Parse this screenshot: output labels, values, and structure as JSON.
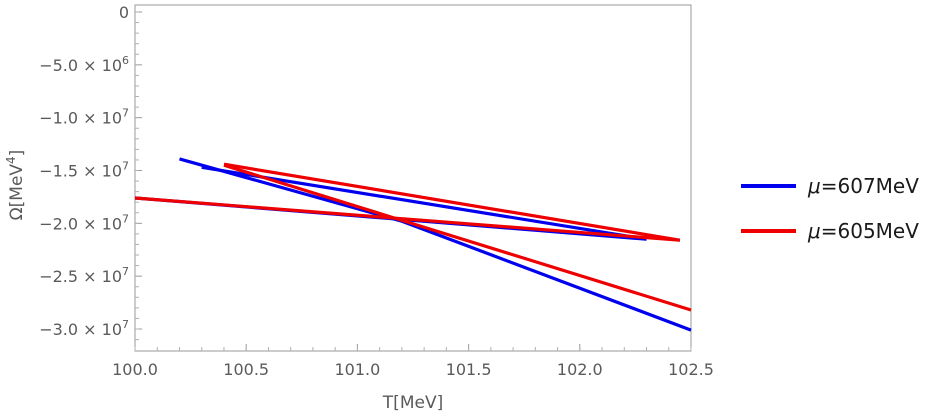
{
  "chart_data": {
    "type": "line",
    "title": "",
    "xlabel": "T[MeV]",
    "ylabel_base": "Ω[MeV",
    "ylabel_exp": "4",
    "ylabel_close": "]",
    "xlim": [
      100.0,
      102.5
    ],
    "ylim": [
      -32000000,
      0
    ],
    "grid": false,
    "legend_placement": "right",
    "x_ticks": [
      {
        "value": 100.0,
        "label": "100.0"
      },
      {
        "value": 100.5,
        "label": "100.5"
      },
      {
        "value": 101.0,
        "label": "101.0"
      },
      {
        "value": 101.5,
        "label": "101.5"
      },
      {
        "value": 102.0,
        "label": "102.0"
      },
      {
        "value": 102.5,
        "label": "102.5"
      }
    ],
    "y_ticks": [
      {
        "value": 0,
        "label": "0",
        "exp": ""
      },
      {
        "value": -5000000,
        "label": "−5.0 × 10",
        "exp": "6"
      },
      {
        "value": -10000000,
        "label": "−1.0 × 10",
        "exp": "7"
      },
      {
        "value": -15000000,
        "label": "−1.5 × 10",
        "exp": "7"
      },
      {
        "value": -20000000,
        "label": "−2.0 × 10",
        "exp": "7"
      },
      {
        "value": -25000000,
        "label": "−2.5 × 10",
        "exp": "7"
      },
      {
        "value": -30000000,
        "label": "−3.0 × 10",
        "exp": "7"
      }
    ],
    "legend": [
      {
        "prefix": "μ",
        "text": "=607MeV",
        "color": "#0000ee"
      },
      {
        "prefix": "μ",
        "text": "=605MeV",
        "color": "#ee0000"
      }
    ],
    "series": [
      {
        "name": "μ=607MeV",
        "color": "#0000ee",
        "segments": [
          {
            "x": [
              100.0,
              102.3
            ],
            "y": [
              -17600000,
              -21500000
            ]
          },
          {
            "x": [
              100.2,
              101.2,
              102.5
            ],
            "y": [
              -13900000,
              -19800000,
              -30100000
            ]
          },
          {
            "x": [
              100.3,
              102.3
            ],
            "y": [
              -14700000,
              -21500000
            ]
          }
        ]
      },
      {
        "name": "μ=605MeV",
        "color": "#ee0000",
        "segments": [
          {
            "x": [
              100.0,
              102.45
            ],
            "y": [
              -17600000,
              -21600000
            ]
          },
          {
            "x": [
              100.4,
              102.5
            ],
            "y": [
              -14500000,
              -28200000
            ]
          },
          {
            "x": [
              100.4,
              102.45
            ],
            "y": [
              -14400000,
              -21600000
            ]
          }
        ]
      }
    ]
  }
}
